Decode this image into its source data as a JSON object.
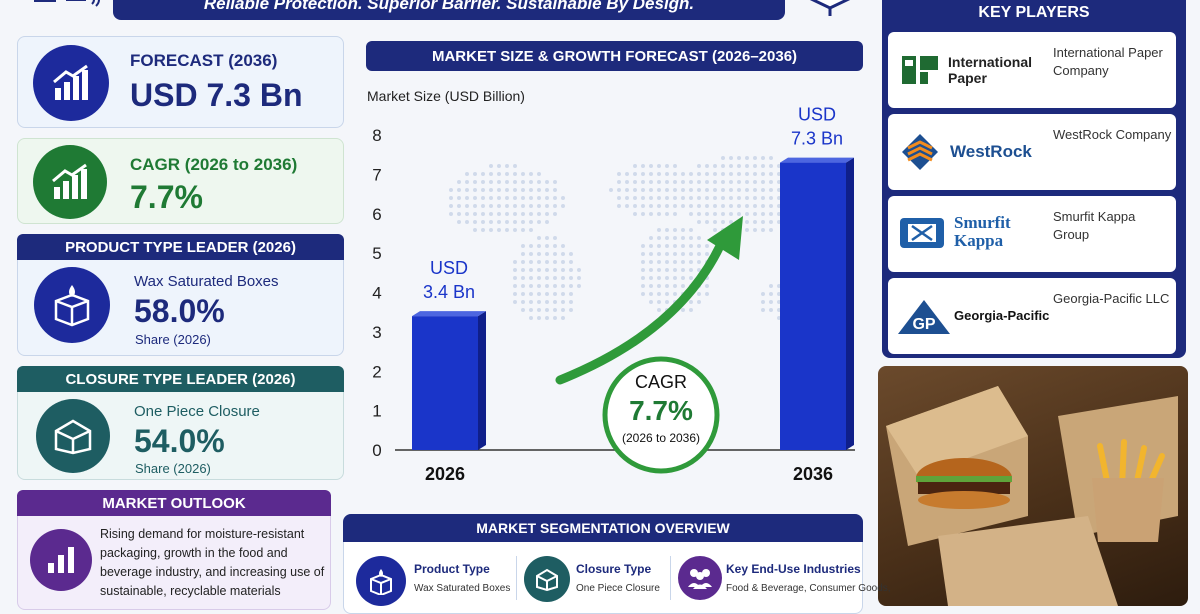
{
  "banner": {
    "tagline": "Reliable Protection. Superior Barrier. Sustainable By Design."
  },
  "forecast": {
    "label": "FORECAST (2036)",
    "value": "USD 7.3 Bn"
  },
  "cagr_card": {
    "label": "CAGR (2026 to 2036)",
    "value": "7.7%"
  },
  "product_leader": {
    "header": "PRODUCT TYPE LEADER (2026)",
    "name": "Wax Saturated Boxes",
    "share": "58.0%",
    "share_label": "Share (2026)"
  },
  "closure_leader": {
    "header": "CLOSURE TYPE LEADER (2026)",
    "name": "One Piece Closure",
    "share": "54.0%",
    "share_label": "Share (2026)"
  },
  "outlook": {
    "header": "MARKET OUTLOOK",
    "text": "Rising demand for moisture-resistant packaging, growth in the food and beverage industry, and increasing use of sustainable, recyclable materials"
  },
  "chart_header": "MARKET SIZE & GROWTH FORECAST (2026–2036)",
  "chart_data": {
    "type": "bar",
    "ylabel": "Market Size (USD Billion)",
    "categories": [
      "2026",
      "2036"
    ],
    "values": [
      3.4,
      7.3
    ],
    "ylim": [
      0,
      8
    ],
    "yticks": [
      "0",
      "1",
      "2",
      "3",
      "4",
      "5",
      "6",
      "7",
      "8"
    ],
    "data_labels": [
      {
        "line1": "USD",
        "line2": "3.4 Bn"
      },
      {
        "line1": "USD",
        "line2": "7.3 Bn"
      }
    ],
    "cagr_badge": {
      "title": "CAGR",
      "value": "7.7%",
      "period": "(2026 to 2036)"
    },
    "bar_color": "#1a35c9"
  },
  "key_players": {
    "title": "KEY PLAYERS",
    "items": [
      {
        "logo_text": "International Paper",
        "logo_mark": "IP",
        "name": "International Paper Company"
      },
      {
        "logo_text": "WestRock",
        "logo_mark": "",
        "name": "WestRock Company"
      },
      {
        "logo_text": "Smurfit Kappa",
        "logo_mark": "",
        "name": "Smurfit Kappa Group"
      },
      {
        "logo_text": "Georgia-Pacific",
        "logo_mark": "GP",
        "name": "Georgia-Pacific LLC"
      }
    ]
  },
  "segmentation": {
    "header": "MARKET SEGMENTATION OVERVIEW",
    "items": [
      {
        "title": "Product Type",
        "value": "Wax Saturated Boxes"
      },
      {
        "title": "Closure Type",
        "value": "One Piece Closure"
      },
      {
        "title": "Key End-Use Industries",
        "value": "Food & Beverage, Consumer Goods,"
      }
    ]
  },
  "colors": {
    "navy": "#1d2a7c",
    "green": "#1f7a34",
    "teal": "#1e5d62",
    "purple": "#5b2a8f",
    "blue": "#1a35c9"
  }
}
